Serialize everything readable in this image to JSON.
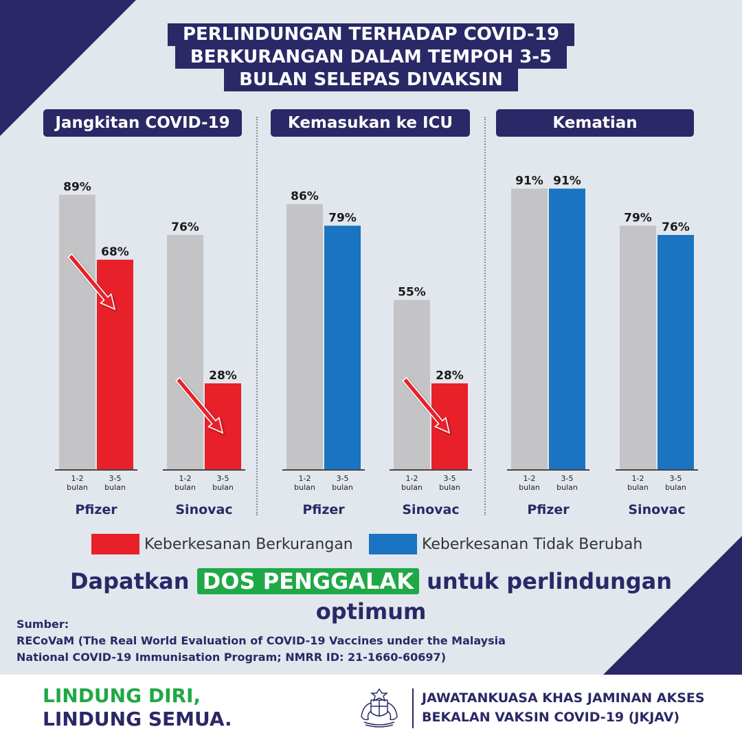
{
  "title_lines": [
    "PERLINDUNGAN TERHADAP COVID-19",
    "BERKURANGAN DALAM TEMPOH 3-5",
    "BULAN SELEPAS DIVAKSIN"
  ],
  "colors": {
    "navy": "#2a2866",
    "grey_bar": "#c4c4c6",
    "red_bar": "#e8202a",
    "blue_bar": "#1a74c2",
    "green": "#1fa846",
    "background": "#e1e7ed"
  },
  "chart_data": [
    {
      "type": "bar",
      "title": "Jangkitan COVID-19",
      "groups": [
        {
          "name": "Pfizer",
          "bars": [
            {
              "category": "1-2 bulan",
              "value": 89,
              "label": "89%",
              "status": "baseline"
            },
            {
              "category": "3-5 bulan",
              "value": 68,
              "label": "68%",
              "status": "decreased"
            }
          ]
        },
        {
          "name": "Sinovac",
          "bars": [
            {
              "category": "1-2 bulan",
              "value": 76,
              "label": "76%",
              "status": "baseline"
            },
            {
              "category": "3-5 bulan",
              "value": 28,
              "label": "28%",
              "status": "decreased"
            }
          ]
        }
      ],
      "ylim": [
        0,
        100
      ]
    },
    {
      "type": "bar",
      "title": "Kemasukan ke ICU",
      "groups": [
        {
          "name": "Pfizer",
          "bars": [
            {
              "category": "1-2 bulan",
              "value": 86,
              "label": "86%",
              "status": "baseline"
            },
            {
              "category": "3-5 bulan",
              "value": 79,
              "label": "79%",
              "status": "unchanged"
            }
          ]
        },
        {
          "name": "Sinovac",
          "bars": [
            {
              "category": "1-2 bulan",
              "value": 55,
              "label": "55%",
              "status": "baseline"
            },
            {
              "category": "3-5 bulan",
              "value": 28,
              "label": "28%",
              "status": "decreased"
            }
          ]
        }
      ],
      "ylim": [
        0,
        100
      ]
    },
    {
      "type": "bar",
      "title": "Kematian",
      "groups": [
        {
          "name": "Pfizer",
          "bars": [
            {
              "category": "1-2 bulan",
              "value": 91,
              "label": "91%",
              "status": "baseline"
            },
            {
              "category": "3-5 bulan",
              "value": 91,
              "label": "91%",
              "status": "unchanged"
            }
          ]
        },
        {
          "name": "Sinovac",
          "bars": [
            {
              "category": "1-2 bulan",
              "value": 79,
              "label": "79%",
              "status": "baseline"
            },
            {
              "category": "3-5 bulan",
              "value": 76,
              "label": "76%",
              "status": "unchanged"
            }
          ]
        }
      ],
      "ylim": [
        0,
        100
      ]
    }
  ],
  "period_labels": {
    "early": [
      "1-2",
      "bulan"
    ],
    "late": [
      "3-5",
      "bulan"
    ]
  },
  "legend": [
    {
      "label": "Keberkesanan Berkurangan",
      "color": "#e8202a"
    },
    {
      "label": "Keberkesanan Tidak Berubah",
      "color": "#1a74c2"
    }
  ],
  "cta": {
    "before": "Dapatkan",
    "highlight": "DOS PENGGALAK",
    "after": "untuk perlindungan",
    "line2": "optimum"
  },
  "source": {
    "heading": "Sumber:",
    "line1": "RECoVaM (The Real World Evaluation of COVID-19 Vaccines under the Malaysia",
    "line2": "National COVID-19 Immunisation Program; NMRR ID: 21-1660-60697)"
  },
  "footer": {
    "slogan_line1": "LINDUNG DIRI,",
    "slogan_line2": "LINDUNG SEMUA.",
    "agency_line1": "JAWATANKUASA KHAS JAMINAN AKSES",
    "agency_line2": "BEKALAN VAKSIN COVID-19 (JKJAV)",
    "crest_icon": "malaysia-coat-of-arms-icon"
  }
}
